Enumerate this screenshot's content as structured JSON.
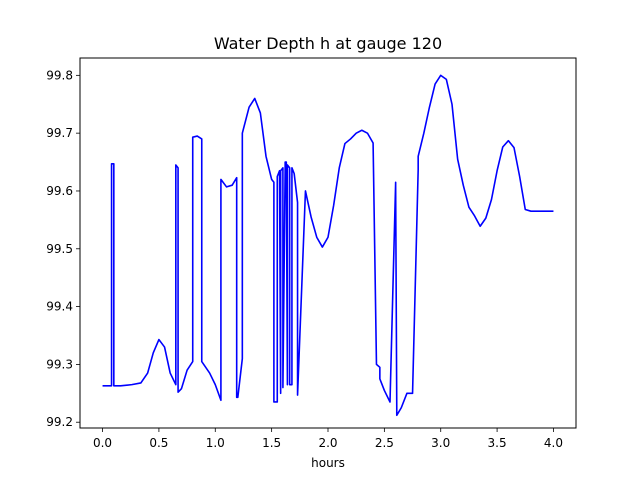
{
  "chart_data": {
    "type": "line",
    "title": "Water Depth h at gauge 120",
    "xlabel": "hours",
    "ylabel": "",
    "xlim": [
      -0.2,
      4.2
    ],
    "ylim": [
      99.19,
      99.83
    ],
    "xticks": [
      0.0,
      0.5,
      1.0,
      1.5,
      2.0,
      2.5,
      3.0,
      3.5,
      4.0
    ],
    "xtick_labels": [
      "0.0",
      "0.5",
      "1.0",
      "1.5",
      "2.0",
      "2.5",
      "3.0",
      "3.5",
      "4.0"
    ],
    "yticks": [
      99.2,
      99.3,
      99.4,
      99.5,
      99.6,
      99.7,
      99.8
    ],
    "ytick_labels": [
      "99.2",
      "99.3",
      "99.4",
      "99.5",
      "99.6",
      "99.7",
      "99.8"
    ],
    "grid": false,
    "legend": "none",
    "series": [
      {
        "color": "#0000ff",
        "x": [
          0.0,
          0.08,
          0.08,
          0.1,
          0.1,
          0.16,
          0.26,
          0.34,
          0.4,
          0.45,
          0.5,
          0.55,
          0.6,
          0.65,
          0.65,
          0.67,
          0.67,
          0.7,
          0.75,
          0.8,
          0.8,
          0.84,
          0.88,
          0.88,
          0.95,
          1.0,
          1.05,
          1.05,
          1.1,
          1.15,
          1.19,
          1.19,
          1.2,
          1.24,
          1.24,
          1.3,
          1.35,
          1.4,
          1.45,
          1.5,
          1.52,
          1.52,
          1.55,
          1.55,
          1.57,
          1.58,
          1.58,
          1.6,
          1.6,
          1.62,
          1.62,
          1.63,
          1.64,
          1.64,
          1.66,
          1.66,
          1.68,
          1.68,
          1.7,
          1.73,
          1.73,
          1.8,
          1.85,
          1.9,
          1.95,
          2.0,
          2.05,
          2.1,
          2.15,
          2.2,
          2.25,
          2.3,
          2.35,
          2.4,
          2.43,
          2.46,
          2.46,
          2.5,
          2.55,
          2.6,
          2.6,
          2.61,
          2.61,
          2.65,
          2.7,
          2.75,
          2.8,
          2.8,
          2.85,
          2.9,
          2.95,
          3.0,
          3.05,
          3.1,
          3.15,
          3.2,
          3.25,
          3.3,
          3.35,
          3.4,
          3.45,
          3.5,
          3.55,
          3.6,
          3.65,
          3.7,
          3.75,
          3.8,
          3.85,
          3.9,
          3.95,
          4.0
        ],
        "y": [
          99.263,
          99.263,
          99.647,
          99.647,
          99.263,
          99.263,
          99.265,
          99.268,
          99.285,
          99.32,
          99.343,
          99.33,
          99.285,
          99.265,
          99.645,
          99.64,
          99.252,
          99.258,
          99.29,
          99.305,
          99.693,
          99.695,
          99.69,
          99.305,
          99.285,
          99.265,
          99.238,
          99.62,
          99.607,
          99.61,
          99.623,
          99.243,
          99.243,
          99.31,
          99.7,
          99.745,
          99.76,
          99.735,
          99.66,
          99.62,
          99.615,
          99.235,
          99.235,
          99.625,
          99.635,
          99.25,
          99.635,
          99.64,
          99.26,
          99.64,
          99.65,
          99.65,
          99.265,
          99.645,
          99.64,
          99.265,
          99.265,
          99.64,
          99.63,
          99.58,
          99.247,
          99.6,
          99.555,
          99.52,
          99.503,
          99.52,
          99.575,
          99.64,
          99.682,
          99.69,
          99.7,
          99.705,
          99.7,
          99.683,
          99.3,
          99.295,
          99.275,
          99.255,
          99.235,
          99.615,
          99.61,
          99.225,
          99.212,
          99.225,
          99.25,
          99.25,
          99.637,
          99.66,
          99.7,
          99.745,
          99.785,
          99.8,
          99.793,
          99.75,
          99.655,
          99.61,
          99.572,
          99.557,
          99.539,
          99.553,
          99.585,
          99.635,
          99.676,
          99.687,
          99.675,
          99.625,
          99.568,
          99.565,
          99.565,
          99.565,
          99.565,
          99.565
        ]
      }
    ]
  }
}
